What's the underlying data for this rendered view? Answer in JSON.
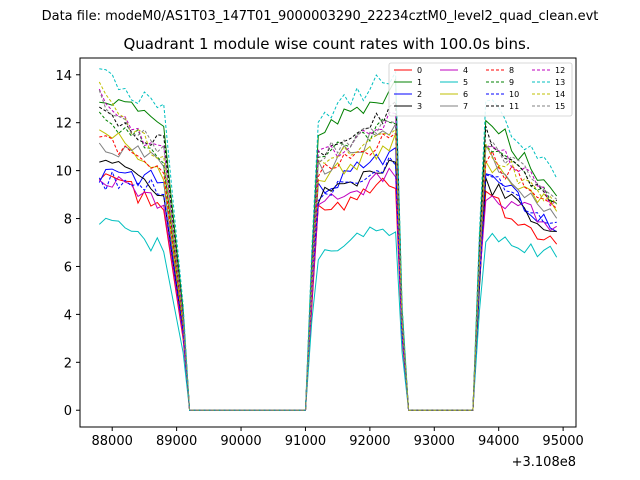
{
  "figure": {
    "suptitle": "Data file: modeM0/AS1T03_147T01_9000003290_22234cztM0_level2_quad_clean.evt"
  },
  "chart_data": {
    "type": "line",
    "title": "Quadrant 1 module wise count rates with 100.0s bins.",
    "xlabel": "",
    "ylabel": "",
    "x_offset_label": "+3.108e8",
    "xlim": [
      87500,
      95200
    ],
    "ylim": [
      -0.7,
      14.7
    ],
    "x_ticks": [
      88000,
      89000,
      90000,
      91000,
      92000,
      93000,
      94000,
      95000
    ],
    "x_tick_labels": [
      "88000",
      "89000",
      "90000",
      "91000",
      "92000",
      "93000",
      "94000",
      "95000"
    ],
    "y_ticks": [
      0,
      2,
      4,
      6,
      8,
      10,
      12,
      14
    ],
    "y_tick_labels": [
      "0",
      "2",
      "4",
      "6",
      "8",
      "10",
      "12",
      "14"
    ],
    "legend_position": "top-right",
    "segments": [
      {
        "start": 87800,
        "count": 11
      },
      {
        "start": 89100,
        "count": 2,
        "zero": true
      },
      {
        "start": 89200,
        "count": 19,
        "zero_all": true
      },
      {
        "start": 91100,
        "count": 14
      },
      {
        "start": 92500,
        "count": 2,
        "zero": true
      },
      {
        "start": 92600,
        "count": 11,
        "zero_all": true
      },
      {
        "start": 93700,
        "count": 13
      }
    ],
    "series": [
      {
        "name": "0",
        "color": "#ff0000",
        "dash": false,
        "level": 8.5,
        "start": 10.0,
        "end": 7.0
      },
      {
        "name": "1",
        "color": "#008000",
        "dash": false,
        "level": 12.0,
        "start": 13.2,
        "end": 9.0
      },
      {
        "name": "2",
        "color": "#0000ff",
        "dash": false,
        "level": 9.6,
        "start": 9.8,
        "end": 7.5
      },
      {
        "name": "3",
        "color": "#000000",
        "dash": false,
        "level": 9.2,
        "start": 10.6,
        "end": 7.5
      },
      {
        "name": "4",
        "color": "#bf00bf",
        "dash": false,
        "level": 8.8,
        "start": 9.8,
        "end": 7.7
      },
      {
        "name": "5",
        "color": "#00bfbf",
        "dash": false,
        "level": 6.9,
        "start": 7.9,
        "end": 6.4
      },
      {
        "name": "6",
        "color": "#bfbf00",
        "dash": false,
        "level": 10.0,
        "start": 11.8,
        "end": 8.3
      },
      {
        "name": "7",
        "color": "#808080",
        "dash": false,
        "level": 10.5,
        "start": 11.2,
        "end": 8.0
      },
      {
        "name": "8",
        "color": "#ff0000",
        "dash": true,
        "level": 10.3,
        "start": 11.4,
        "end": 8.4
      },
      {
        "name": "9",
        "color": "#008000",
        "dash": true,
        "level": 10.8,
        "start": 12.4,
        "end": 8.6
      },
      {
        "name": "10",
        "color": "#0000ff",
        "dash": true,
        "level": 9.4,
        "start": 9.6,
        "end": 7.8
      },
      {
        "name": "11",
        "color": "#000000",
        "dash": true,
        "level": 11.2,
        "start": 12.5,
        "end": 8.7
      },
      {
        "name": "12",
        "color": "#bf00bf",
        "dash": true,
        "level": 10.9,
        "start": 13.2,
        "end": 8.7
      },
      {
        "name": "13",
        "color": "#00bfbf",
        "dash": true,
        "level": 12.6,
        "start": 14.0,
        "end": 9.6
      },
      {
        "name": "14",
        "color": "#bfbf00",
        "dash": true,
        "level": 10.6,
        "start": 13.4,
        "end": 8.5
      },
      {
        "name": "15",
        "color": "#808080",
        "dash": true,
        "level": 11.0,
        "start": 13.0,
        "end": 8.7
      }
    ]
  }
}
